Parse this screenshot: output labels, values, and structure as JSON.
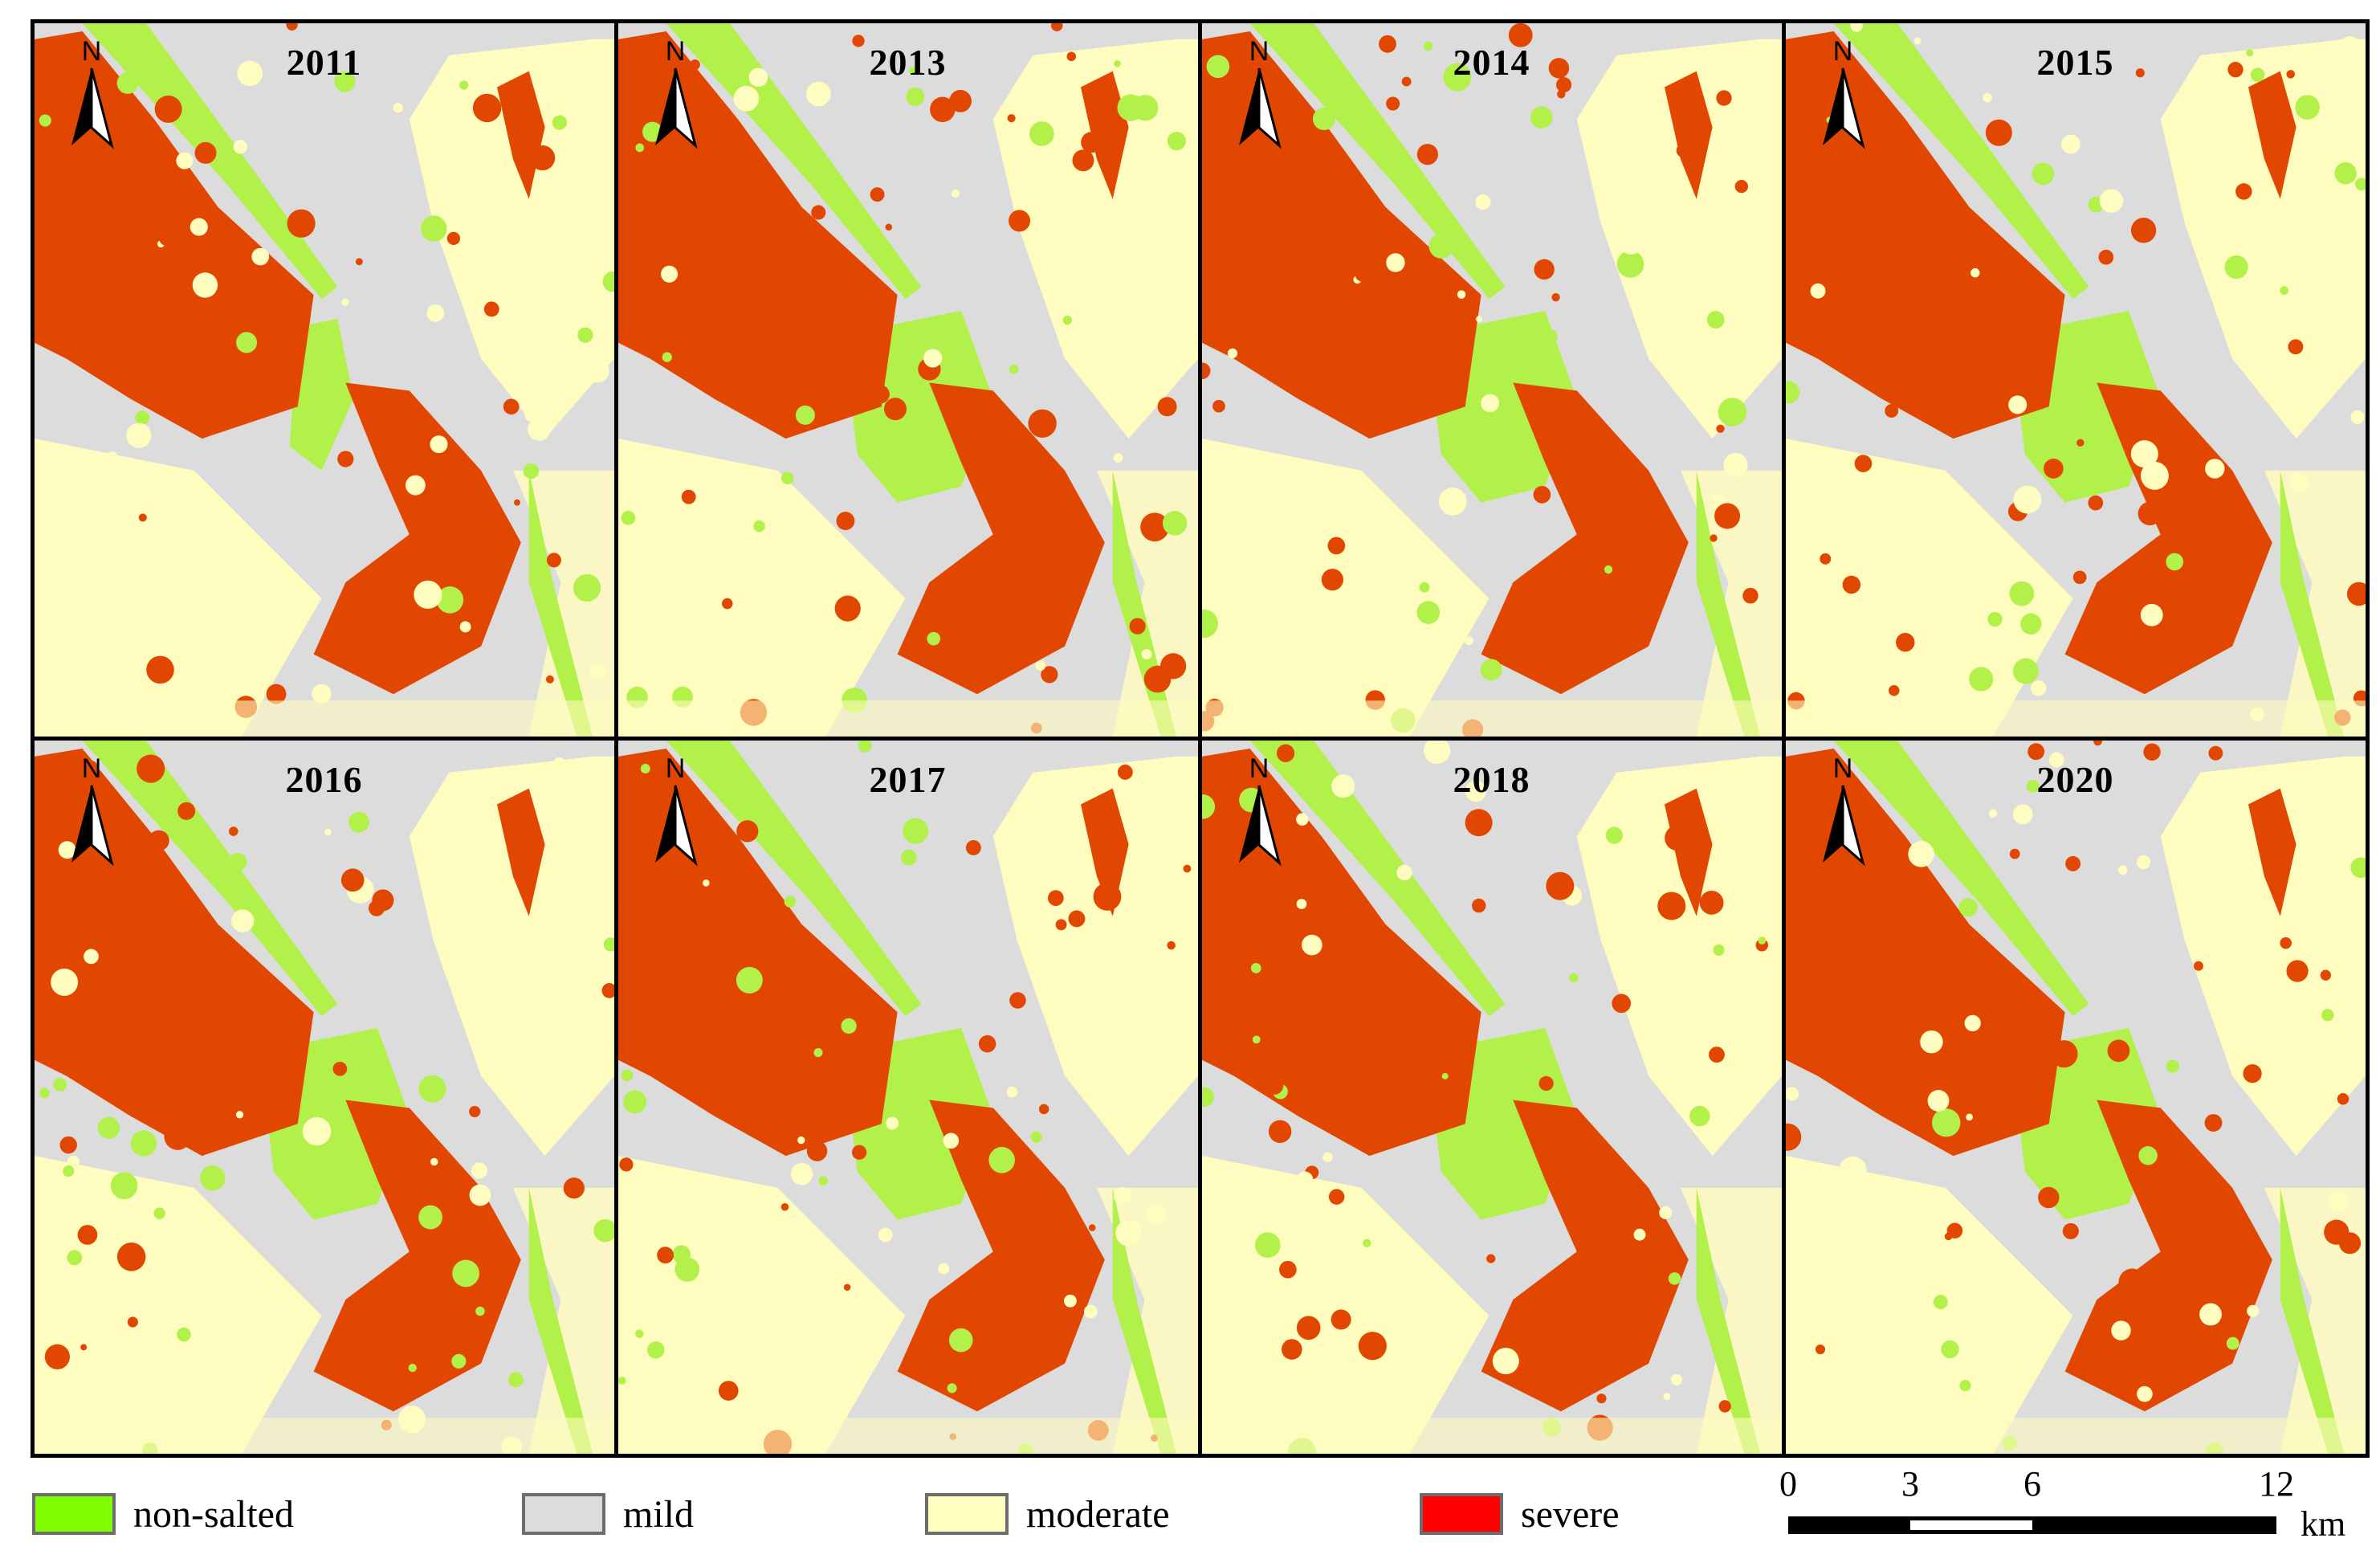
{
  "colors": {
    "non_salted": "#b2f04a",
    "mild": "#dcdcdc",
    "moderate": "#fffcc0",
    "severe": "#e14700",
    "legend_severe": "#ff0000"
  },
  "panels": [
    {
      "year": "2011",
      "green_center": 0
    },
    {
      "year": "2013",
      "green_center": 1
    },
    {
      "year": "2014",
      "green_center": 1
    },
    {
      "year": "2015",
      "green_center": 1
    },
    {
      "year": "2016",
      "green_center": 1
    },
    {
      "year": "2017",
      "green_center": 1
    },
    {
      "year": "2018",
      "green_center": 1
    },
    {
      "year": "2020",
      "green_center": 1
    }
  ],
  "north_arrow": {
    "label": "N"
  },
  "legend": [
    {
      "label": "non-salted",
      "color": "#7fff00"
    },
    {
      "label": "mild",
      "color": "#dcdcdc"
    },
    {
      "label": "moderate",
      "color": "#ffffc0"
    },
    {
      "label": "severe",
      "color": "#ff0000"
    }
  ],
  "scale_bar": {
    "ticks": [
      "0",
      "3",
      "6",
      "12"
    ],
    "tick_values": [
      0,
      3,
      6,
      12
    ],
    "unit": "km"
  }
}
